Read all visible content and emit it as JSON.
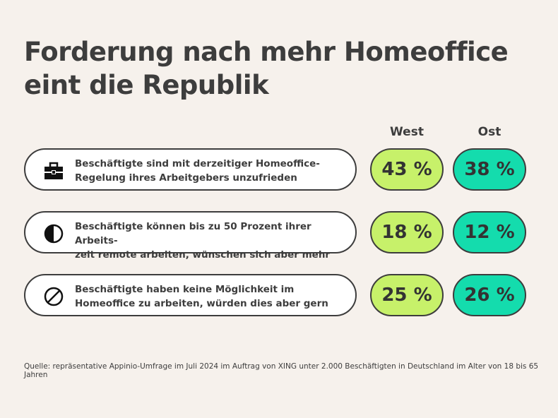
{
  "title": "Forderung nach mehr Homeoffice eint die Republik",
  "columns": {
    "west": "West",
    "ost": "Ost"
  },
  "source": "Quelle: repräsentative Appinio-Umfrage im Juli 2024 im Auftrag von XING unter 2.000 Beschäftigten in Deutschland im Alter von 18 bis 65 Jahren",
  "colors": {
    "background": "#f6f1ec",
    "west": "#c7f16a",
    "ost": "#14dcad",
    "outline": "#3d3d3d"
  },
  "chart_data": {
    "type": "table",
    "title": "Forderung nach mehr Homeoffice eint die Republik",
    "columns": [
      "West",
      "Ost"
    ],
    "unit": "%",
    "rows": [
      {
        "icon": "briefcase-icon",
        "label": "Beschäftigte sind mit derzeitiger Homeoffice-\nRegelung ihres Arbeitgebers unzufrieden",
        "west": 43,
        "ost": 38,
        "west_label": "43 %",
        "ost_label": "38 %"
      },
      {
        "icon": "half-circle-icon",
        "label": "Beschäftigte können bis zu 50 Prozent ihrer Arbeits-\nzeit remote arbeiten, wünschen sich aber mehr",
        "west": 18,
        "ost": 12,
        "west_label": "18 %",
        "ost_label": "12 %"
      },
      {
        "icon": "prohibited-icon",
        "label": "Beschäftigte haben keine Möglichkeit im\nHomeoffice zu arbeiten, würden dies aber gern",
        "west": 25,
        "ost": 26,
        "west_label": "25 %",
        "ost_label": "26 %"
      }
    ]
  }
}
